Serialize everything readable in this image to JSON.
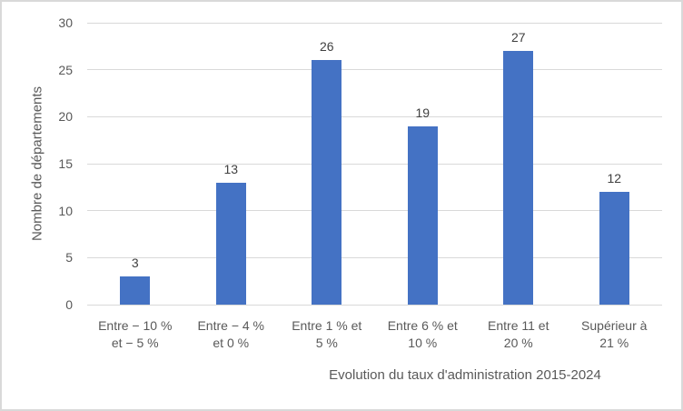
{
  "chart_data": {
    "type": "bar",
    "title": "",
    "categories": [
      [
        "Entre − 10 %",
        "et − 5 %"
      ],
      [
        "Entre − 4 %",
        "et 0 %"
      ],
      [
        "Entre 1 % et",
        "5 %"
      ],
      [
        "Entre 6 % et",
        "10 %"
      ],
      [
        "Entre 11 et",
        "20 %"
      ],
      [
        "Supérieur à",
        "21 %"
      ]
    ],
    "values": [
      3,
      13,
      26,
      19,
      27,
      12
    ],
    "data_labels": [
      "3",
      "13",
      "26",
      "19",
      "27",
      "12"
    ],
    "xlabel": "Evolution du taux d'administration 2015-2024",
    "ylabel": "Nombre de départements",
    "ylim": [
      0,
      30
    ],
    "yticks": [
      0,
      5,
      10,
      15,
      20,
      25,
      30
    ],
    "grid": true,
    "legend": false,
    "colors": {
      "bar": "#4472C4",
      "gridline": "#d9d9d9",
      "axis_text": "#595959",
      "data_label": "#404040",
      "frame_border": "#d9d9d9",
      "background": "#ffffff"
    }
  }
}
